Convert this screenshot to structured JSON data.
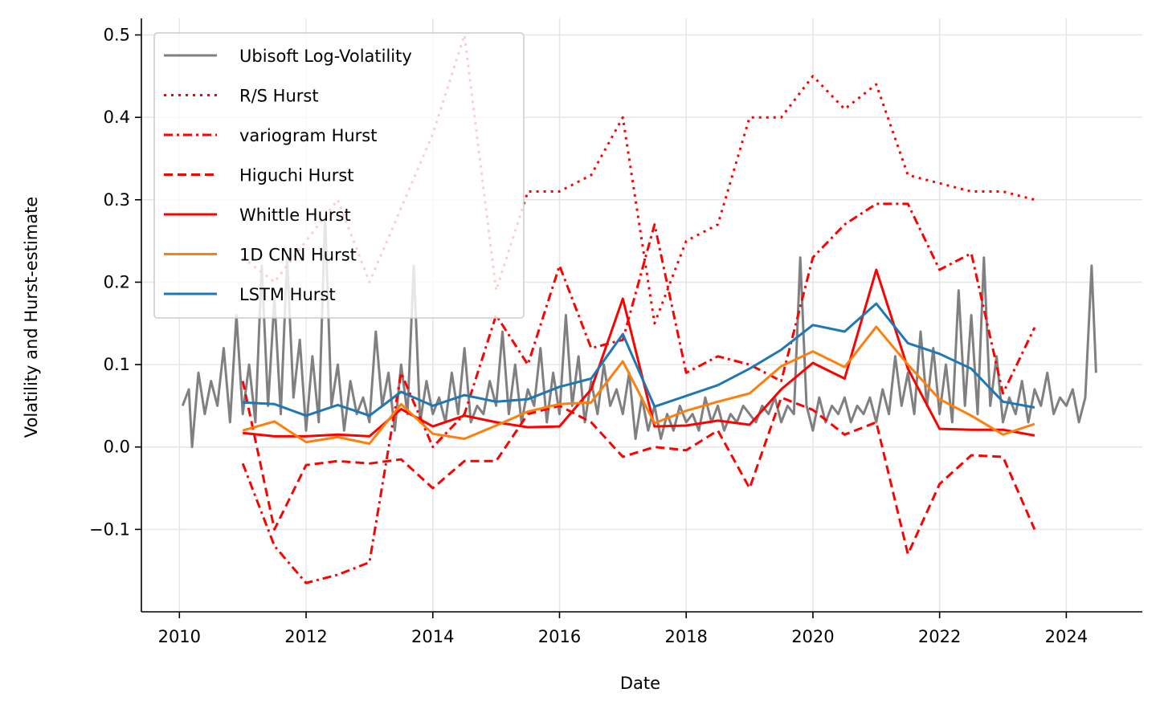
{
  "chart_data": {
    "type": "line",
    "title": "",
    "xlabel": "Date",
    "ylabel": "Volatility and Hurst-estimate",
    "xlim": [
      2009.4,
      2025.2
    ],
    "ylim": [
      -0.2,
      0.52
    ],
    "xticks": [
      2010,
      2012,
      2014,
      2016,
      2018,
      2020,
      2022,
      2024
    ],
    "xtick_labels": [
      "2010",
      "2012",
      "2014",
      "2016",
      "2018",
      "2020",
      "2022",
      "2024"
    ],
    "yticks": [
      -0.1,
      0.0,
      0.1,
      0.2,
      0.3,
      0.4,
      0.5
    ],
    "ytick_labels": [
      "−0.1",
      "0.0",
      "0.1",
      "0.2",
      "0.3",
      "0.4",
      "0.5"
    ],
    "grid": true,
    "legend_position": "top-left",
    "hurst_x": [
      2011.0,
      2011.5,
      2012.0,
      2012.5,
      2013.0,
      2013.5,
      2014.0,
      2014.5,
      2015.0,
      2015.5,
      2016.0,
      2016.5,
      2017.0,
      2017.5,
      2018.0,
      2018.5,
      2019.0,
      2019.5,
      2020.0,
      2020.5,
      2021.0,
      2021.5,
      2022.0,
      2022.5,
      2023.0,
      2023.5
    ],
    "series": [
      {
        "name": "Ubisoft Log-Volatility",
        "color": "#808080",
        "style": "solid",
        "x": [
          2010.05,
          2010.15,
          2010.2,
          2010.3,
          2010.4,
          2010.5,
          2010.6,
          2010.7,
          2010.8,
          2010.9,
          2011.0,
          2011.1,
          2011.2,
          2011.3,
          2011.4,
          2011.5,
          2011.6,
          2011.7,
          2011.8,
          2011.9,
          2012.0,
          2012.1,
          2012.2,
          2012.3,
          2012.4,
          2012.5,
          2012.6,
          2012.7,
          2012.8,
          2012.9,
          2013.0,
          2013.1,
          2013.2,
          2013.3,
          2013.4,
          2013.5,
          2013.6,
          2013.7,
          2013.8,
          2013.9,
          2014.0,
          2014.1,
          2014.2,
          2014.3,
          2014.4,
          2014.5,
          2014.6,
          2014.7,
          2014.8,
          2014.9,
          2015.0,
          2015.1,
          2015.2,
          2015.3,
          2015.4,
          2015.5,
          2015.6,
          2015.7,
          2015.8,
          2015.9,
          2016.0,
          2016.1,
          2016.2,
          2016.3,
          2016.4,
          2016.5,
          2016.6,
          2016.7,
          2016.8,
          2016.9,
          2017.0,
          2017.1,
          2017.2,
          2017.3,
          2017.4,
          2017.5,
          2017.6,
          2017.7,
          2017.8,
          2017.9,
          2018.0,
          2018.1,
          2018.2,
          2018.3,
          2018.4,
          2018.5,
          2018.6,
          2018.7,
          2018.8,
          2018.9,
          2019.0,
          2019.1,
          2019.2,
          2019.3,
          2019.4,
          2019.5,
          2019.6,
          2019.7,
          2019.8,
          2019.9,
          2020.0,
          2020.1,
          2020.2,
          2020.3,
          2020.4,
          2020.5,
          2020.6,
          2020.7,
          2020.8,
          2020.9,
          2021.0,
          2021.1,
          2021.2,
          2021.3,
          2021.4,
          2021.5,
          2021.6,
          2021.7,
          2021.8,
          2021.9,
          2022.0,
          2022.1,
          2022.2,
          2022.3,
          2022.4,
          2022.5,
          2022.6,
          2022.7,
          2022.8,
          2022.9,
          2023.0,
          2023.1,
          2023.2,
          2023.3,
          2023.4,
          2023.5,
          2023.6,
          2023.7,
          2023.8,
          2023.9,
          2024.0,
          2024.1,
          2024.2,
          2024.3,
          2024.4,
          2024.47
        ],
        "y": [
          0.05,
          0.07,
          0.0,
          0.09,
          0.04,
          0.08,
          0.05,
          0.12,
          0.03,
          0.16,
          0.04,
          0.1,
          0.03,
          0.22,
          0.05,
          0.18,
          0.04,
          0.23,
          0.06,
          0.13,
          0.02,
          0.11,
          0.03,
          0.28,
          0.05,
          0.1,
          0.02,
          0.08,
          0.04,
          0.06,
          0.03,
          0.14,
          0.05,
          0.09,
          0.02,
          0.1,
          0.04,
          0.22,
          0.03,
          0.08,
          0.04,
          0.06,
          0.03,
          0.09,
          0.04,
          0.12,
          0.03,
          0.05,
          0.04,
          0.08,
          0.05,
          0.14,
          0.04,
          0.1,
          0.03,
          0.07,
          0.05,
          0.12,
          0.03,
          0.09,
          0.04,
          0.16,
          0.05,
          0.11,
          0.03,
          0.08,
          0.04,
          0.1,
          0.05,
          0.07,
          0.04,
          0.09,
          0.01,
          0.06,
          0.02,
          0.05,
          0.01,
          0.04,
          0.02,
          0.05,
          0.03,
          0.04,
          0.02,
          0.06,
          0.03,
          0.05,
          0.02,
          0.04,
          0.03,
          0.05,
          0.04,
          0.03,
          0.05,
          0.04,
          0.06,
          0.03,
          0.05,
          0.04,
          0.23,
          0.05,
          0.02,
          0.06,
          0.03,
          0.05,
          0.04,
          0.06,
          0.03,
          0.05,
          0.04,
          0.06,
          0.03,
          0.07,
          0.04,
          0.11,
          0.05,
          0.09,
          0.04,
          0.14,
          0.05,
          0.12,
          0.04,
          0.1,
          0.03,
          0.19,
          0.05,
          0.16,
          0.04,
          0.23,
          0.05,
          0.11,
          0.03,
          0.06,
          0.04,
          0.08,
          0.03,
          0.07,
          0.05,
          0.09,
          0.04,
          0.06,
          0.05,
          0.07,
          0.03,
          0.06,
          0.22,
          0.09
        ]
      },
      {
        "name": "R/S Hurst",
        "color": "#ff0000",
        "style": "dotted",
        "y": [
          0.23,
          0.2,
          0.25,
          0.3,
          0.2,
          0.29,
          0.38,
          0.5,
          0.19,
          0.31,
          0.31,
          0.33,
          0.4,
          0.15,
          0.25,
          0.27,
          0.4,
          0.4,
          0.45,
          0.41,
          0.44,
          0.33,
          0.32,
          0.31,
          0.31,
          0.3
        ]
      },
      {
        "name": "variogram Hurst",
        "color": "#ff0000",
        "style": "dashdot",
        "y": [
          -0.02,
          -0.12,
          -0.165,
          -0.155,
          -0.14,
          0.09,
          0.0,
          0.04,
          0.16,
          0.1,
          0.22,
          0.12,
          0.13,
          0.27,
          0.09,
          0.11,
          0.1,
          0.08,
          0.23,
          0.27,
          0.295,
          0.295,
          0.215,
          0.235,
          0.065,
          0.145
        ]
      },
      {
        "name": "Higuchi Hurst",
        "color": "#ff0000",
        "style": "dashed",
        "y": [
          0.08,
          -0.1,
          -0.022,
          -0.017,
          -0.02,
          -0.015,
          -0.05,
          -0.017,
          -0.017,
          0.04,
          0.05,
          0.03,
          -0.012,
          0.0,
          -0.004,
          0.02,
          -0.05,
          0.06,
          0.045,
          0.015,
          0.03,
          -0.13,
          -0.045,
          -0.01,
          -0.012,
          -0.1
        ]
      },
      {
        "name": "Whittle Hurst",
        "color": "#ff0000",
        "style": "solid",
        "y": [
          0.017,
          0.013,
          0.013,
          0.015,
          0.013,
          0.046,
          0.025,
          0.038,
          0.03,
          0.024,
          0.025,
          0.07,
          0.18,
          0.025,
          0.026,
          0.032,
          0.027,
          0.07,
          0.102,
          0.083,
          0.215,
          0.095,
          0.022,
          0.021,
          0.021,
          0.014
        ]
      },
      {
        "name": "1D CNN Hurst",
        "color": "#ff7f0e",
        "style": "solid",
        "y": [
          0.02,
          0.031,
          0.006,
          0.012,
          0.004,
          0.052,
          0.016,
          0.01,
          0.026,
          0.043,
          0.052,
          0.054,
          0.104,
          0.029,
          0.044,
          0.055,
          0.065,
          0.098,
          0.116,
          0.097,
          0.146,
          0.1,
          0.058,
          0.038,
          0.015,
          0.028
        ]
      },
      {
        "name": "LSTM Hurst",
        "color": "#1f77b4",
        "style": "solid",
        "y": [
          0.054,
          0.052,
          0.038,
          0.051,
          0.038,
          0.067,
          0.05,
          0.063,
          0.055,
          0.058,
          0.073,
          0.083,
          0.137,
          0.049,
          0.062,
          0.075,
          0.095,
          0.118,
          0.148,
          0.14,
          0.174,
          0.126,
          0.113,
          0.095,
          0.055,
          0.048
        ]
      }
    ]
  }
}
